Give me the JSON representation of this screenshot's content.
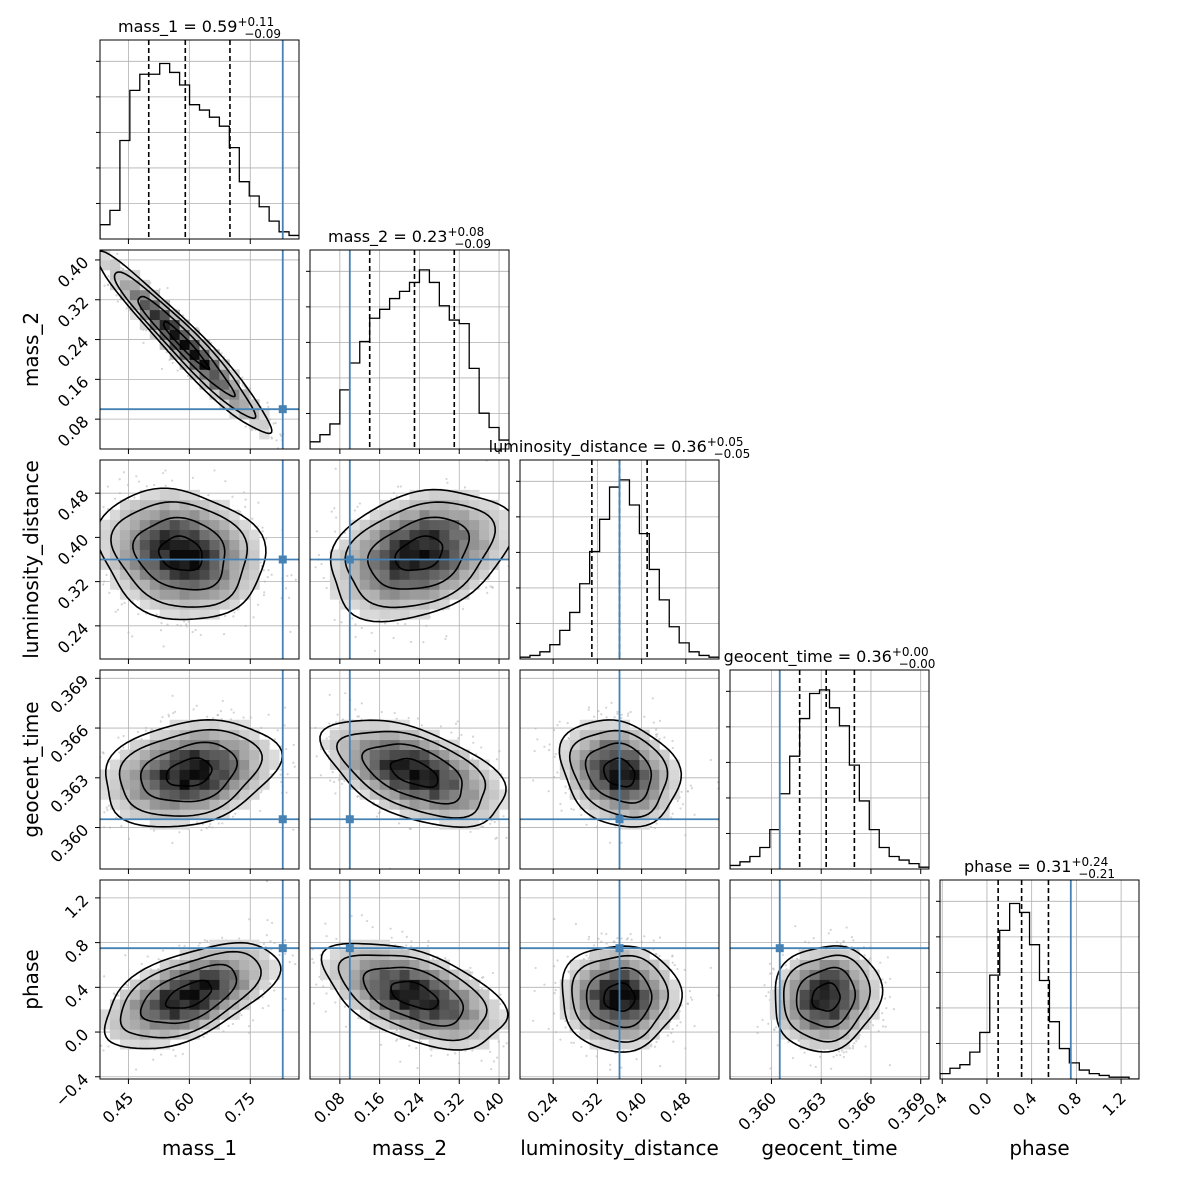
{
  "chart_data": {
    "type": "corner",
    "parameters": [
      "mass_1",
      "mass_2",
      "luminosity_distance",
      "geocent_time",
      "phase"
    ],
    "titles": [
      {
        "param": "mass_1",
        "text": "mass_1 = 0.59",
        "plus": "+0.11",
        "minus": "−0.09"
      },
      {
        "param": "mass_2",
        "text": "mass_2 = 0.23",
        "plus": "+0.08",
        "minus": "−0.09"
      },
      {
        "param": "luminosity_distance",
        "text": "luminosity_distance = 0.36",
        "plus": "+0.05",
        "minus": "−0.05"
      },
      {
        "param": "geocent_time",
        "text": "geocent_time = 0.36",
        "plus": "+0.00",
        "minus": "−0.00"
      },
      {
        "param": "phase",
        "text": "phase = 0.31",
        "plus": "+0.24",
        "minus": "−0.21"
      }
    ],
    "ranges": [
      [
        0.38,
        0.87
      ],
      [
        0.02,
        0.42
      ],
      [
        0.18,
        0.54
      ],
      [
        0.3575,
        0.3695
      ],
      [
        -0.42,
        1.36
      ]
    ],
    "ticks": [
      {
        "values": [
          0.45,
          0.6,
          0.75
        ],
        "labels": [
          "0.45",
          "0.60",
          "0.75"
        ]
      },
      {
        "values": [
          0.08,
          0.16,
          0.24,
          0.32,
          0.4
        ],
        "labels": [
          "0.08",
          "0.16",
          "0.24",
          "0.32",
          "0.40"
        ]
      },
      {
        "values": [
          0.24,
          0.32,
          0.4,
          0.48
        ],
        "labels": [
          "0.24",
          "0.32",
          "0.40",
          "0.48"
        ]
      },
      {
        "values": [
          0.36,
          0.363,
          0.366,
          0.369
        ],
        "labels": [
          "0.360",
          "0.363",
          "0.366",
          "0.369"
        ]
      },
      {
        "values": [
          -0.4,
          0.0,
          0.4,
          0.8,
          1.2
        ],
        "labels": [
          "−0.4",
          "0.0",
          "0.4",
          "0.8",
          "1.2"
        ]
      }
    ],
    "truths": [
      0.83,
      0.1,
      0.36,
      0.3605,
      0.75
    ],
    "quantiles": [
      [
        0.5,
        0.59,
        0.7
      ],
      [
        0.14,
        0.23,
        0.31
      ],
      [
        0.31,
        0.36,
        0.41
      ],
      [
        0.3617,
        0.3633,
        0.365
      ],
      [
        0.1,
        0.31,
        0.55
      ]
    ],
    "histograms": [
      [
        0.08,
        0.16,
        0.55,
        0.83,
        0.92,
        0.92,
        0.98,
        0.93,
        0.86,
        0.75,
        0.72,
        0.68,
        0.63,
        0.51,
        0.32,
        0.24,
        0.18,
        0.1,
        0.04,
        0.02
      ],
      [
        0.04,
        0.08,
        0.14,
        0.33,
        0.48,
        0.6,
        0.73,
        0.78,
        0.84,
        0.88,
        0.93,
        1.0,
        0.93,
        0.8,
        0.72,
        0.7,
        0.45,
        0.2,
        0.12,
        0.05
      ],
      [
        0.01,
        0.02,
        0.04,
        0.08,
        0.16,
        0.26,
        0.42,
        0.6,
        0.78,
        0.96,
        1.0,
        0.86,
        0.7,
        0.5,
        0.33,
        0.18,
        0.09,
        0.04,
        0.02,
        0.01
      ],
      [
        0.02,
        0.04,
        0.07,
        0.12,
        0.22,
        0.42,
        0.63,
        0.84,
        0.98,
        1.0,
        0.9,
        0.8,
        0.58,
        0.38,
        0.22,
        0.12,
        0.07,
        0.05,
        0.03,
        0.01
      ],
      [
        0.03,
        0.06,
        0.08,
        0.15,
        0.26,
        0.58,
        0.83,
        0.98,
        0.93,
        0.75,
        0.55,
        0.32,
        0.17,
        0.09,
        0.05,
        0.03,
        0.02,
        0.01,
        0.01,
        0.0
      ]
    ],
    "pairs": [
      {
        "row": 1,
        "col": 0,
        "mean": [
          0.59,
          0.23
        ],
        "sd": [
          0.1,
          0.085
        ],
        "rho": -0.96
      },
      {
        "row": 2,
        "col": 0,
        "mean": [
          0.58,
          0.37
        ],
        "sd": [
          0.095,
          0.055
        ],
        "rho": -0.15
      },
      {
        "row": 2,
        "col": 1,
        "mean": [
          0.24,
          0.37
        ],
        "sd": [
          0.085,
          0.055
        ],
        "rho": 0.3
      },
      {
        "row": 3,
        "col": 0,
        "mean": [
          0.6,
          0.3633
        ],
        "sd": [
          0.1,
          0.0015
        ],
        "rho": 0.25
      },
      {
        "row": 3,
        "col": 1,
        "mean": [
          0.23,
          0.3633
        ],
        "sd": [
          0.085,
          0.0015
        ],
        "rho": -0.5
      },
      {
        "row": 3,
        "col": 2,
        "mean": [
          0.36,
          0.3633
        ],
        "sd": [
          0.05,
          0.0015
        ],
        "rho": -0.2
      },
      {
        "row": 4,
        "col": 0,
        "mean": [
          0.6,
          0.33
        ],
        "sd": [
          0.1,
          0.22
        ],
        "rho": 0.55
      },
      {
        "row": 4,
        "col": 1,
        "mean": [
          0.23,
          0.33
        ],
        "sd": [
          0.085,
          0.22
        ],
        "rho": -0.5
      },
      {
        "row": 4,
        "col": 2,
        "mean": [
          0.36,
          0.31
        ],
        "sd": [
          0.05,
          0.22
        ],
        "rho": 0.0
      },
      {
        "row": 4,
        "col": 3,
        "mean": [
          0.3633,
          0.31
        ],
        "sd": [
          0.0015,
          0.22
        ],
        "rho": 0.1
      }
    ],
    "grid": true,
    "colors": {
      "truth": "#4682b4",
      "line": "#000000",
      "scatter": "#b0b0b0",
      "grid": "#b0b0b0"
    }
  }
}
